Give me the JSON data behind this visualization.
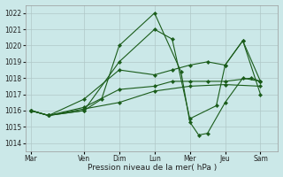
{
  "xlabel": "Pression niveau de la mer( hPa )",
  "background_color": "#cbe8e8",
  "grid_color": "#b0c8c8",
  "line_color": "#1a5c1a",
  "ylim": [
    1013.5,
    1022.5
  ],
  "yticks": [
    1014,
    1015,
    1016,
    1017,
    1018,
    1019,
    1020,
    1021,
    1022
  ],
  "x_labels": [
    "Mar",
    "Ven",
    "Dim",
    "Lun",
    "Mer",
    "Jeu",
    "Sam"
  ],
  "x_positions": [
    0,
    3,
    5,
    7,
    9,
    11,
    13
  ],
  "xlim": [
    -0.3,
    14.0
  ],
  "lines": [
    {
      "x": [
        0,
        1,
        3,
        4,
        5,
        7,
        8.5,
        9,
        9.5,
        10,
        11,
        12,
        13
      ],
      "y": [
        1016.0,
        1015.7,
        1016.0,
        1016.7,
        1020.0,
        1022.0,
        1018.4,
        1015.3,
        1014.5,
        1014.6,
        1016.5,
        1018.0,
        1017.8
      ]
    },
    {
      "x": [
        0,
        1,
        3,
        5,
        7,
        8,
        9,
        10.5,
        11,
        12,
        13
      ],
      "y": [
        1016.0,
        1015.7,
        1016.0,
        1019.0,
        1021.0,
        1020.4,
        1015.5,
        1016.3,
        1018.8,
        1020.3,
        1017.0
      ]
    },
    {
      "x": [
        0,
        1,
        3,
        5,
        7,
        8,
        9,
        10,
        11,
        12,
        13
      ],
      "y": [
        1016.0,
        1015.7,
        1016.7,
        1018.5,
        1018.2,
        1018.5,
        1018.8,
        1019.0,
        1018.8,
        1020.3,
        1017.8
      ]
    },
    {
      "x": [
        0,
        1,
        3,
        5,
        7,
        8,
        9,
        10,
        11,
        12.5,
        13
      ],
      "y": [
        1016.0,
        1015.7,
        1016.2,
        1017.3,
        1017.5,
        1017.8,
        1017.8,
        1017.8,
        1017.8,
        1018.0,
        1017.8
      ]
    },
    {
      "x": [
        0,
        1,
        3,
        5,
        7,
        9,
        11,
        13
      ],
      "y": [
        1016.0,
        1015.7,
        1016.1,
        1016.5,
        1017.2,
        1017.5,
        1017.6,
        1017.5
      ]
    }
  ]
}
